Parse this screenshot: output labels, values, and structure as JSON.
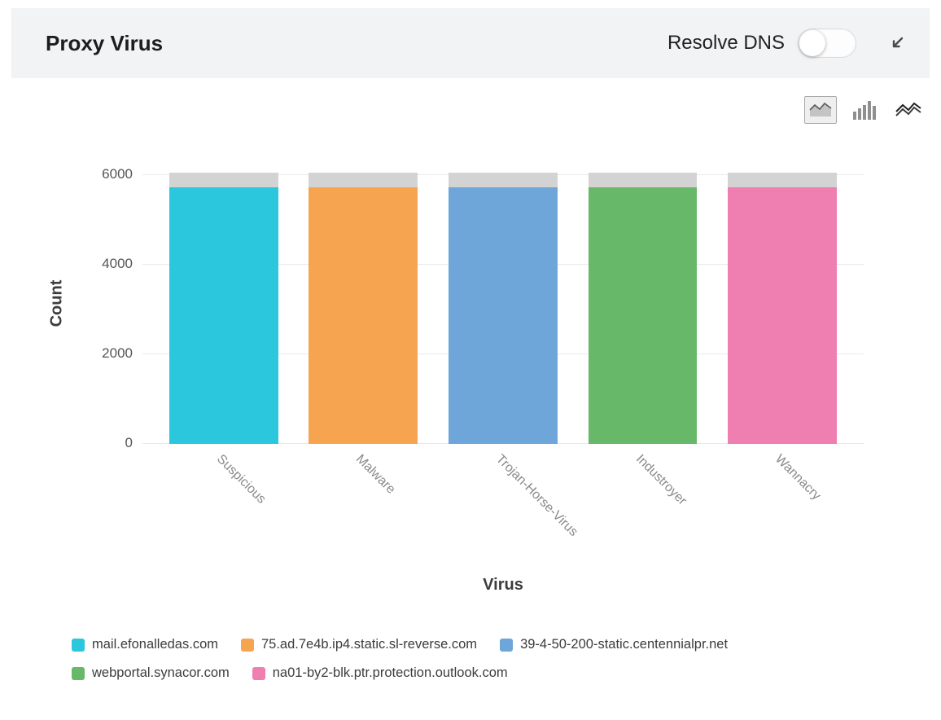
{
  "header": {
    "title": "Proxy Virus",
    "resolve_dns_label": "Resolve DNS",
    "resolve_dns_toggle_state": "off"
  },
  "toolbar": {
    "chart_types": [
      {
        "name": "area-chart",
        "selected": true
      },
      {
        "name": "bar-chart",
        "selected": false
      },
      {
        "name": "line-chart",
        "selected": false
      }
    ]
  },
  "chart_data": {
    "type": "bar",
    "title": "Proxy Virus",
    "xlabel": "Virus",
    "ylabel": "Count",
    "ylim": [
      0,
      6000
    ],
    "yticks": [
      0,
      2000,
      4000,
      6000
    ],
    "grid": "horizontal",
    "legend_position": "bottom",
    "categories": [
      "Suspicious",
      "Malware",
      "Trojan-Horse-Virus",
      "Industroyer",
      "Wannacry"
    ],
    "series": [
      {
        "name": "mail.efonalledas.com",
        "color": "#2bc7dd",
        "values": [
          5730,
          0,
          0,
          0,
          0
        ]
      },
      {
        "name": "75.ad.7e4b.ip4.static.sl-reverse.com",
        "color": "#f7a451",
        "values": [
          0,
          5730,
          0,
          0,
          0
        ]
      },
      {
        "name": "39-4-50-200-static.centennialpr.net",
        "color": "#6ea6d9",
        "values": [
          0,
          0,
          5730,
          0,
          0
        ]
      },
      {
        "name": "webportal.synacor.com",
        "color": "#68b869",
        "values": [
          0,
          0,
          0,
          5730,
          0
        ]
      },
      {
        "name": "na01-by2-blk.ptr.protection.outlook.com",
        "color": "#ef7fb0",
        "values": [
          0,
          0,
          0,
          0,
          5730
        ]
      },
      {
        "name": "(unlabeled gray segment)",
        "color": "#d3d3d3",
        "values": [
          320,
          320,
          320,
          320,
          320
        ],
        "in_legend": false
      }
    ]
  }
}
